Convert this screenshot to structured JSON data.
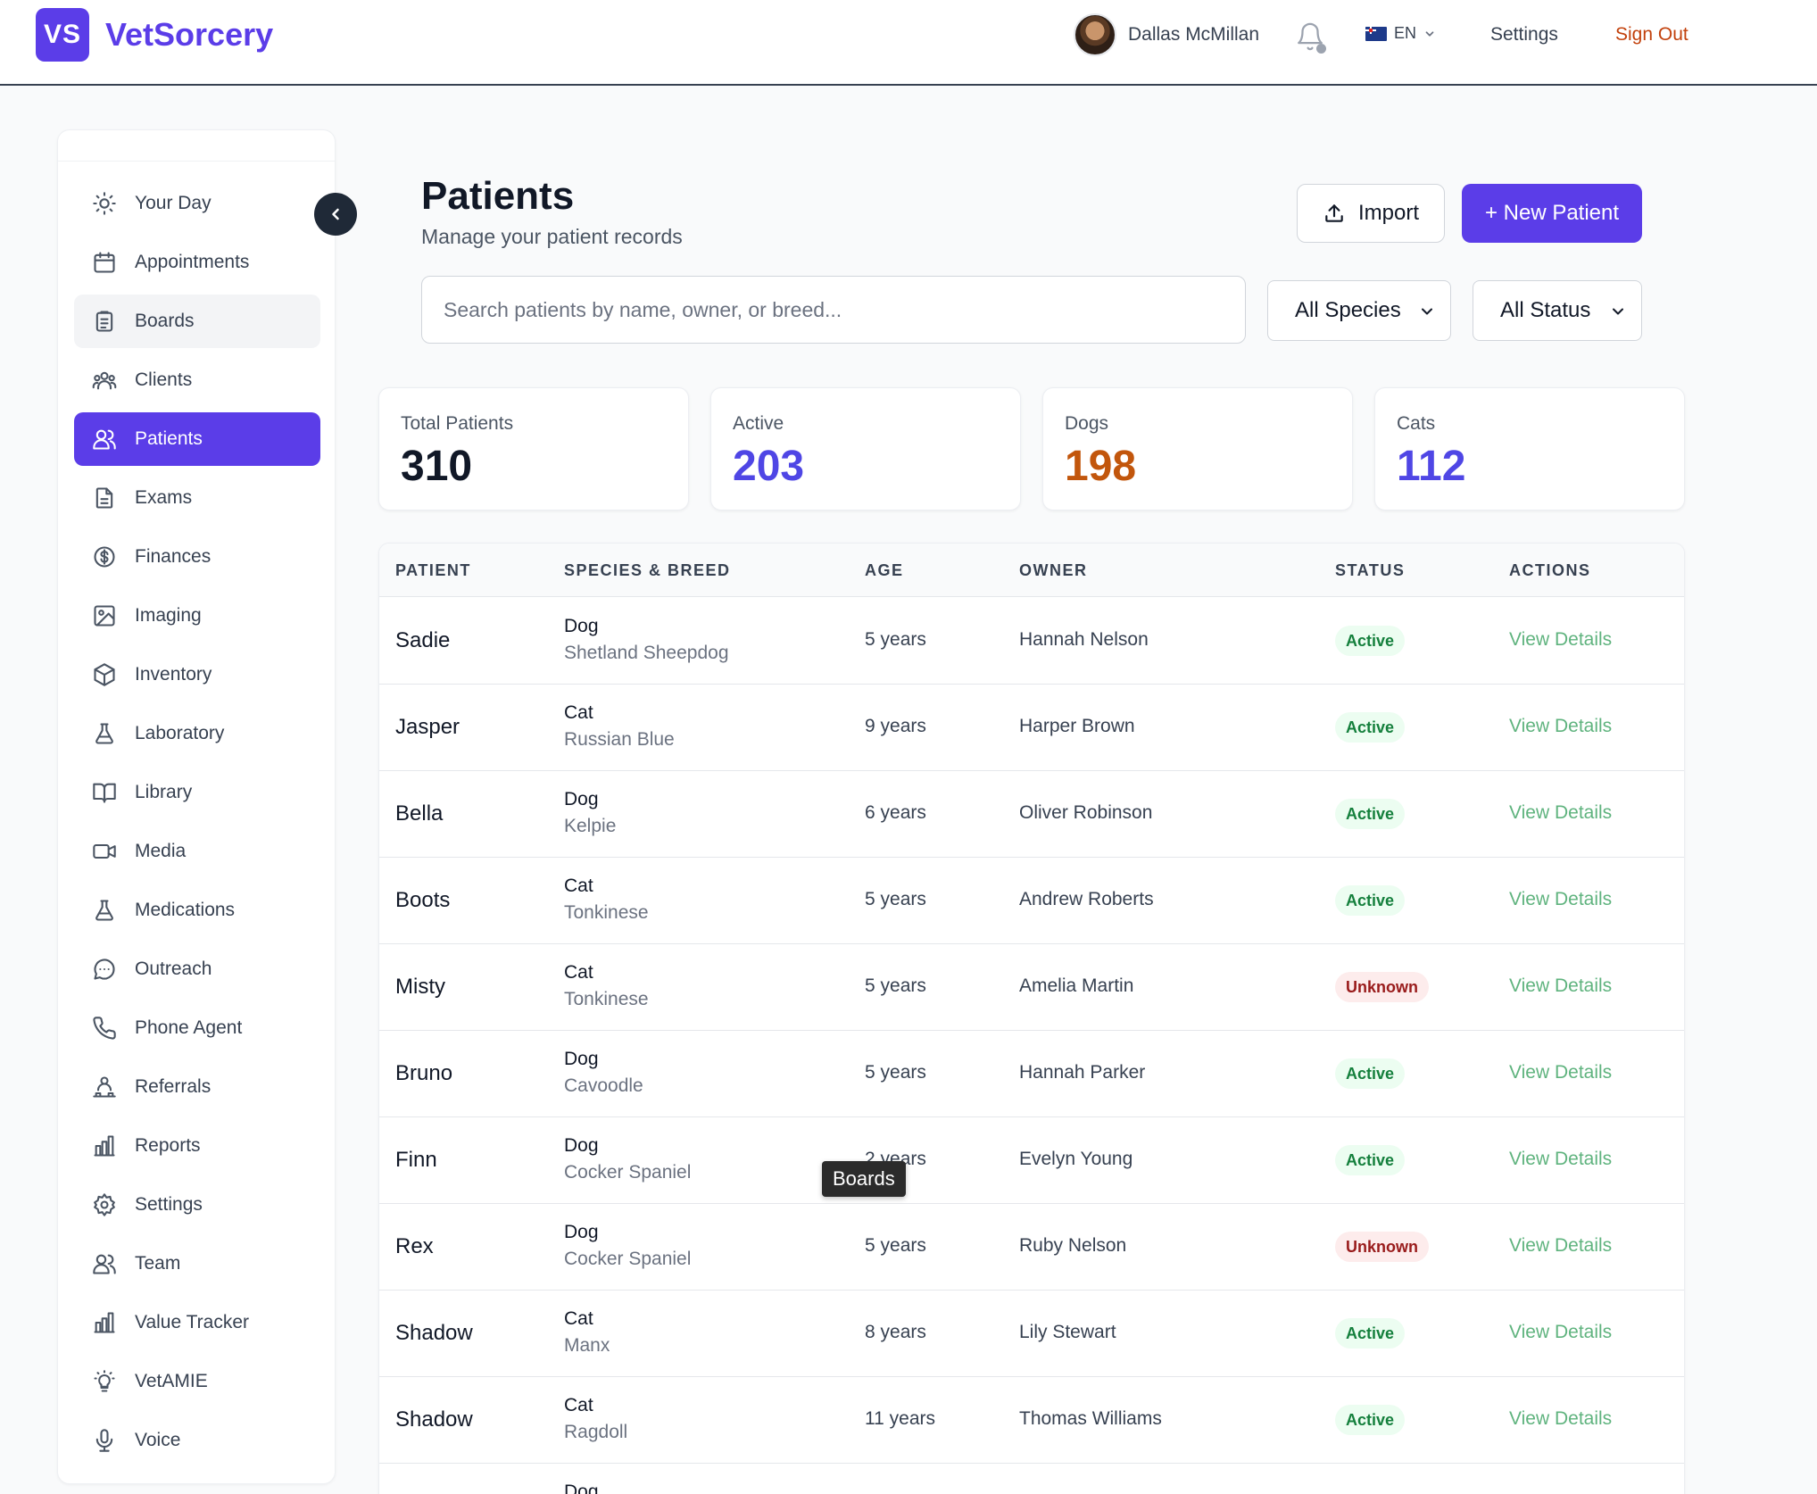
{
  "header": {
    "logo_mark": "VS",
    "brand": "VetSorcery",
    "user_name": "Dallas McMillan",
    "language": "EN",
    "settings_label": "Settings",
    "signout_label": "Sign Out"
  },
  "sidebar": {
    "items": [
      {
        "label": "Your Day",
        "icon": "sun-icon"
      },
      {
        "label": "Appointments",
        "icon": "calendar-icon"
      },
      {
        "label": "Boards",
        "icon": "clipboard-icon"
      },
      {
        "label": "Clients",
        "icon": "users-group-icon"
      },
      {
        "label": "Patients",
        "icon": "users-icon"
      },
      {
        "label": "Exams",
        "icon": "document-icon"
      },
      {
        "label": "Finances",
        "icon": "dollar-circle-icon"
      },
      {
        "label": "Imaging",
        "icon": "image-icon"
      },
      {
        "label": "Inventory",
        "icon": "cube-icon"
      },
      {
        "label": "Laboratory",
        "icon": "flask-icon"
      },
      {
        "label": "Library",
        "icon": "book-icon"
      },
      {
        "label": "Media",
        "icon": "video-icon"
      },
      {
        "label": "Medications",
        "icon": "flask-icon"
      },
      {
        "label": "Outreach",
        "icon": "chat-bubble-icon"
      },
      {
        "label": "Phone Agent",
        "icon": "phone-icon"
      },
      {
        "label": "Referrals",
        "icon": "referral-icon"
      },
      {
        "label": "Reports",
        "icon": "bar-chart-icon"
      },
      {
        "label": "Settings",
        "icon": "cog-icon"
      },
      {
        "label": "Team",
        "icon": "users-icon"
      },
      {
        "label": "Value Tracker",
        "icon": "bar-chart-icon"
      },
      {
        "label": "VetAMIE",
        "icon": "lightbulb-icon"
      },
      {
        "label": "Voice",
        "icon": "microphone-icon"
      }
    ],
    "active_index": 4,
    "hover_index": 2
  },
  "main": {
    "title": "Patients",
    "subtitle": "Manage your patient records",
    "import_label": "Import",
    "new_label": "+ New Patient",
    "search_placeholder": "Search patients by name, owner, or breed...",
    "species_filter": "All Species",
    "status_filter": "All Status"
  },
  "stats": [
    {
      "label": "Total Patients",
      "value": "310",
      "color": "#111827"
    },
    {
      "label": "Active",
      "value": "203",
      "color": "#4f46e5"
    },
    {
      "label": "Dogs",
      "value": "198",
      "color": "#c2560c"
    },
    {
      "label": "Cats",
      "value": "112",
      "color": "#4f46e5"
    }
  ],
  "table": {
    "headers": [
      "PATIENT",
      "SPECIES & BREED",
      "AGE",
      "OWNER",
      "STATUS",
      "ACTIONS"
    ],
    "action_label": "View Details",
    "rows": [
      {
        "name": "Sadie",
        "species": "Dog",
        "breed": "Shetland Sheepdog",
        "age": "5 years",
        "owner": "Hannah Nelson",
        "status": "Active"
      },
      {
        "name": "Jasper",
        "species": "Cat",
        "breed": "Russian Blue",
        "age": "9 years",
        "owner": "Harper Brown",
        "status": "Active"
      },
      {
        "name": "Bella",
        "species": "Dog",
        "breed": "Kelpie",
        "age": "6 years",
        "owner": "Oliver Robinson",
        "status": "Active"
      },
      {
        "name": "Boots",
        "species": "Cat",
        "breed": "Tonkinese",
        "age": "5 years",
        "owner": "Andrew Roberts",
        "status": "Active"
      },
      {
        "name": "Misty",
        "species": "Cat",
        "breed": "Tonkinese",
        "age": "5 years",
        "owner": "Amelia Martin",
        "status": "Unknown"
      },
      {
        "name": "Bruno",
        "species": "Dog",
        "breed": "Cavoodle",
        "age": "5 years",
        "owner": "Hannah Parker",
        "status": "Active"
      },
      {
        "name": "Finn",
        "species": "Dog",
        "breed": "Cocker Spaniel",
        "age": "2 years",
        "owner": "Evelyn Young",
        "status": "Active"
      },
      {
        "name": "Rex",
        "species": "Dog",
        "breed": "Cocker Spaniel",
        "age": "5 years",
        "owner": "Ruby Nelson",
        "status": "Unknown"
      },
      {
        "name": "Shadow",
        "species": "Cat",
        "breed": "Manx",
        "age": "8 years",
        "owner": "Lily Stewart",
        "status": "Active"
      },
      {
        "name": "Shadow",
        "species": "Cat",
        "breed": "Ragdoll",
        "age": "11 years",
        "owner": "Thomas Williams",
        "status": "Active"
      },
      {
        "name": "",
        "species": "Dog",
        "breed": "",
        "age": "",
        "owner": "",
        "status": ""
      }
    ]
  },
  "tooltip": "Boards"
}
